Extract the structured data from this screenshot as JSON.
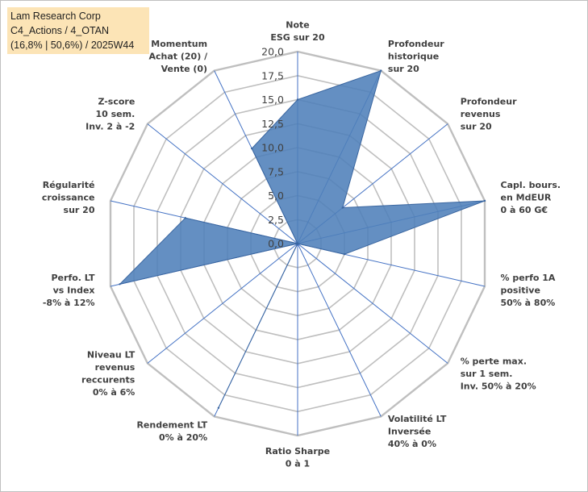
{
  "title_box": {
    "line1": "Lam Research Corp",
    "line2": "C4_Actions / 4_OTAN",
    "line3": "(16,8% | 50,6%) / 2025W44"
  },
  "colors": {
    "fill": "#4f7fb9",
    "stroke": "#3a66a0",
    "grid": "#bfbfbf",
    "spoke": "#4472c4",
    "title_bg": "#fce4b6"
  },
  "chart_data": {
    "type": "radar",
    "rmin": 0,
    "rmax": 20,
    "step": 2.5,
    "tick_labels": [
      "0,0",
      "2,5",
      "5,0",
      "7,5",
      "10,0",
      "12,5",
      "15,0",
      "17,5",
      "20,0"
    ],
    "axes": [
      {
        "label": [
          "Note",
          "ESG sur 20"
        ],
        "value": 15.0
      },
      {
        "label": [
          "Profondeur",
          "historique",
          "sur 20"
        ],
        "value": 20.0
      },
      {
        "label": [
          "Profondeur",
          "revenus",
          "sur 20"
        ],
        "value": 6.0
      },
      {
        "label": [
          "Capl. bours.",
          "en MdEUR",
          "0 à 60 G€"
        ],
        "value": 20.0
      },
      {
        "label": [
          "% perfo 1A",
          "positive",
          "50% à 80%"
        ],
        "value": 5.0
      },
      {
        "label": [
          "% perte max.",
          "sur 1 sem.",
          "Inv. 50% à 20%"
        ],
        "value": 0.0
      },
      {
        "label": [
          "Volatilité LT",
          "Inversée",
          "40% à 0%"
        ],
        "value": 0.0
      },
      {
        "label": [
          "Ratio Sharpe",
          "0 à 1"
        ],
        "value": 0.0
      },
      {
        "label": [
          "Rendement LT",
          "0% à 20%"
        ],
        "value": 19.0
      },
      {
        "label": [
          "Niveau LT",
          "revenus",
          "reccurents",
          "0% à 6%"
        ],
        "value": 0.0
      },
      {
        "label": [
          "Perfo. LT",
          "vs Index",
          "-8% à 12%"
        ],
        "value": 19.0
      },
      {
        "label": [
          "Régularité",
          "croissance",
          "sur 20"
        ],
        "value": 12.0
      },
      {
        "label": [
          "Z-score",
          "10 sem.",
          "Inv. 2 à -2"
        ],
        "value": 0.0
      },
      {
        "label": [
          "Momentum",
          "Achat (20) /",
          "Vente (0)"
        ],
        "value": 11.0
      }
    ]
  }
}
